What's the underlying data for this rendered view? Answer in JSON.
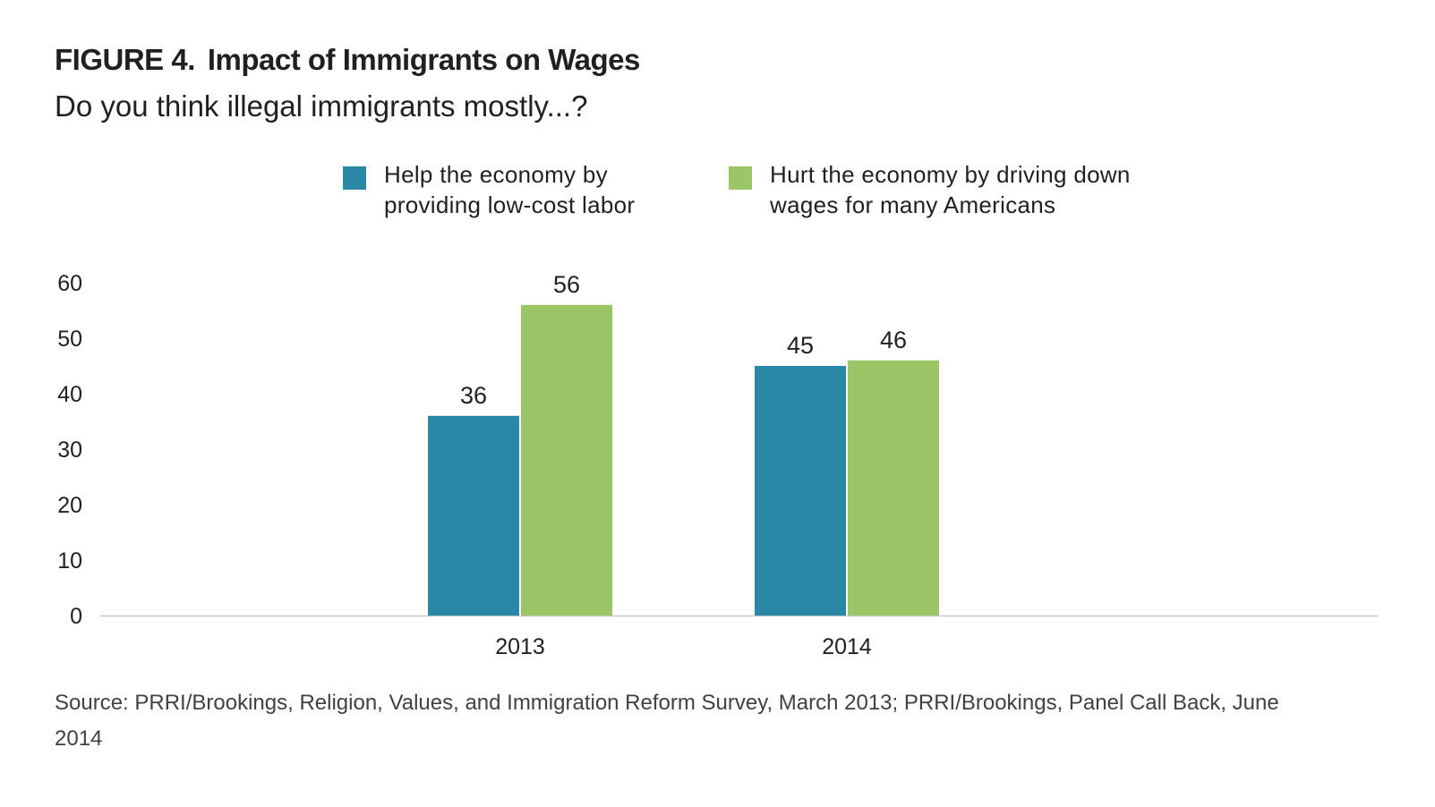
{
  "figure": {
    "label": "FIGURE 4.",
    "title": "Impact of Immigrants on Wages",
    "subtitle": "Do you think illegal immigrants mostly...?"
  },
  "legend": {
    "help": {
      "line1": "Help the economy by",
      "line2": "providing low-cost labor",
      "color": "#2a87a5"
    },
    "hurt": {
      "line1": "Hurt the economy by driving down",
      "line2": "wages for many Americans",
      "color": "#9bc566"
    }
  },
  "chart_data": {
    "type": "bar",
    "categories": [
      "2013",
      "2014"
    ],
    "series": [
      {
        "name": "Help the economy by providing low-cost labor",
        "values": [
          36,
          45
        ],
        "color": "#2a87a5"
      },
      {
        "name": "Hurt the economy by driving down wages for many Americans",
        "values": [
          56,
          46
        ],
        "color": "#9bc566"
      }
    ],
    "yticks": [
      0,
      10,
      20,
      30,
      40,
      50,
      60
    ],
    "ylim": [
      0,
      60
    ],
    "data_labels": true,
    "grid": false,
    "legend_position": "top"
  },
  "source": {
    "text": "Source: PRRI/Brookings, Religion, Values, and Immigration Reform Survey, March 2013; PRRI/Brookings, Panel Call Back, June 2014"
  }
}
